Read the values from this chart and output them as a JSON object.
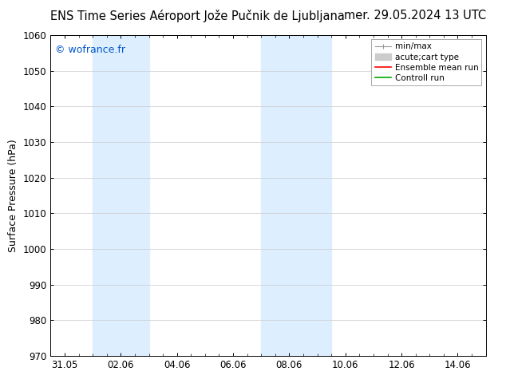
{
  "title_left": "ENS Time Series Aéroport Jože Pučnik de Ljubljana",
  "title_right": "mer. 29.05.2024 13 UTC",
  "ylabel": "Surface Pressure (hPa)",
  "ylim": [
    970,
    1060
  ],
  "yticks": [
    970,
    980,
    990,
    1000,
    1010,
    1020,
    1030,
    1040,
    1050,
    1060
  ],
  "x_labels": [
    "31.05",
    "02.06",
    "04.06",
    "06.06",
    "08.06",
    "10.06",
    "12.06",
    "14.06"
  ],
  "x_tick_positions": [
    0,
    2,
    4,
    6,
    8,
    10,
    12,
    14
  ],
  "xlim": [
    -0.5,
    15.0
  ],
  "watermark": "© wofrance.fr",
  "watermark_color": "#0055cc",
  "bg_color": "#ffffff",
  "plot_bg_color": "#ffffff",
  "shaded_bands": [
    {
      "x_start": 1.0,
      "x_end": 3.0,
      "color": "#ddeeff"
    },
    {
      "x_start": 7.0,
      "x_end": 9.0,
      "color": "#ddeeff"
    },
    {
      "x_start": 9.0,
      "x_end": 9.5,
      "color": "#ddeeff"
    }
  ],
  "legend_items": [
    {
      "label": "min/max",
      "type": "errorbar",
      "color": "#999999"
    },
    {
      "label": "acute;cart type",
      "type": "patch",
      "color": "#cccccc"
    },
    {
      "label": "Ensemble mean run",
      "type": "line",
      "color": "#ff0000"
    },
    {
      "label": "Controll run",
      "type": "line",
      "color": "#00aa00"
    }
  ],
  "title_fontsize": 10.5,
  "axis_label_fontsize": 9,
  "tick_fontsize": 8.5,
  "watermark_fontsize": 9,
  "legend_fontsize": 7.5,
  "grid_color": "#cccccc",
  "grid_lw": 0.5,
  "spine_color": "#000000",
  "minor_tick_interval": 0.5
}
